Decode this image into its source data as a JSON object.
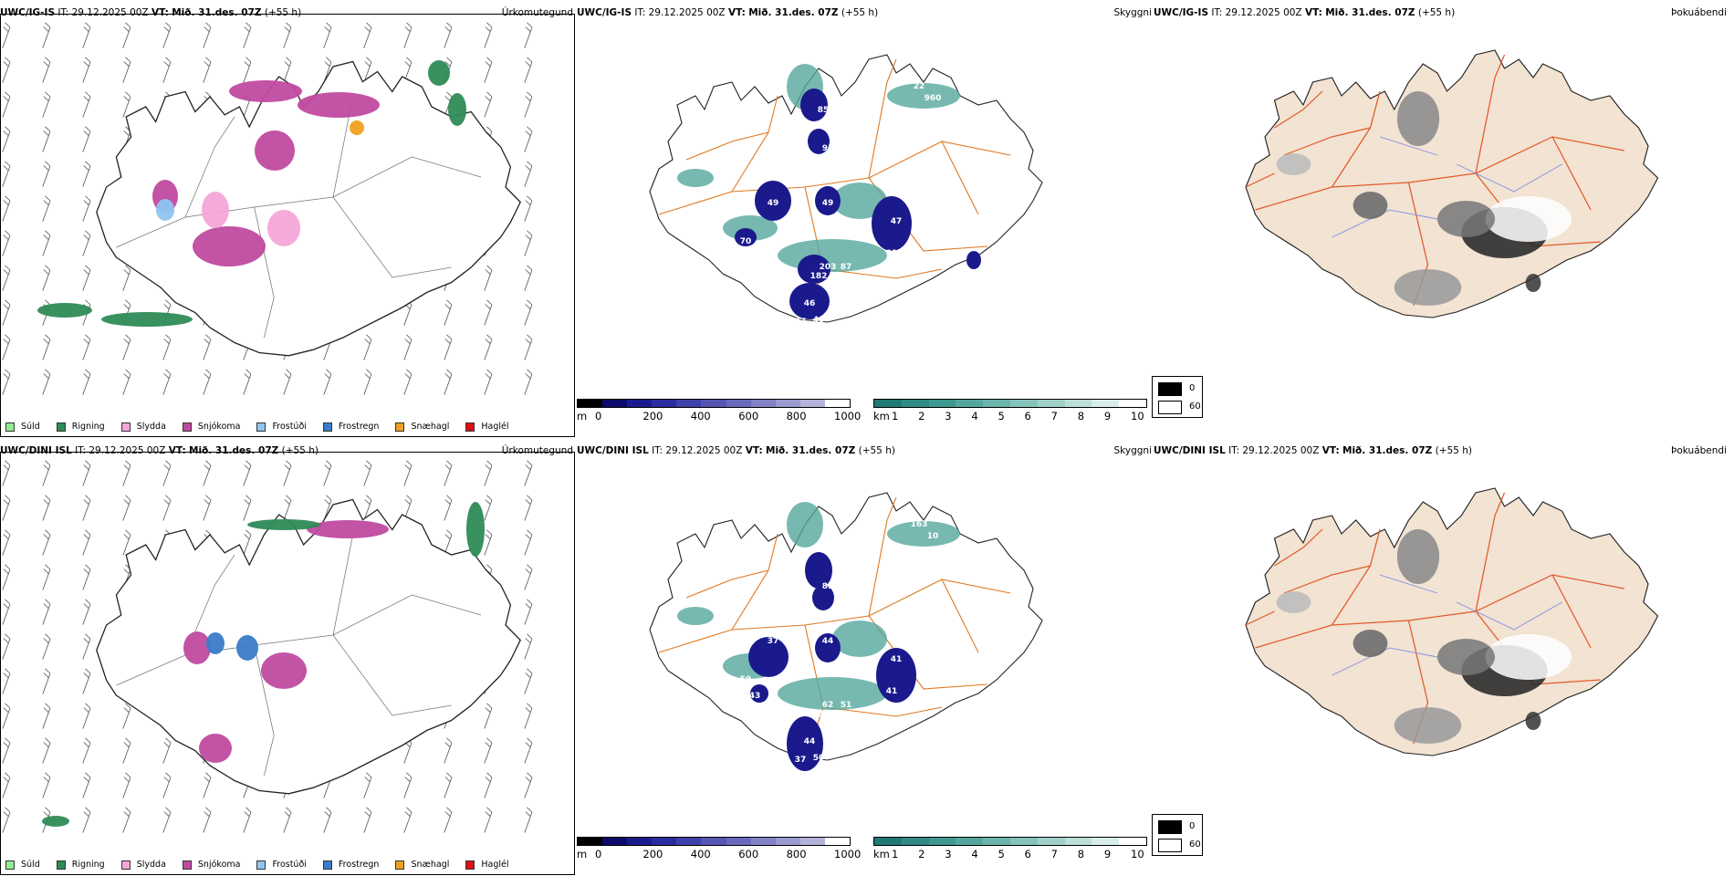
{
  "rows": [
    {
      "model": "UWC/IG-IS",
      "it_label": "IT:",
      "it": "29.12.2025 00Z",
      "vt_label": "VT:",
      "vt": "Mið. 31.des. 07Z",
      "lead": "(+55 h)",
      "vis_labels": [
        "49",
        "49",
        "70",
        "57",
        "47",
        "82",
        "182",
        "203",
        "87",
        "46",
        "37",
        "40",
        "85",
        "95",
        "41",
        "960",
        "22",
        "37"
      ]
    },
    {
      "model": "UWC/DINI ISL",
      "it_label": "IT:",
      "it": "29.12.2025 00Z",
      "vt_label": "VT:",
      "vt": "Mið. 31.des. 07Z",
      "lead": "(+55 h)",
      "vis_labels": [
        "37",
        "44",
        "59",
        "43",
        "41",
        "41",
        "51",
        "62",
        "51",
        "44",
        "37",
        "50",
        "91",
        "85",
        "81",
        "10",
        "163",
        "12"
      ]
    }
  ],
  "panel_titles": {
    "precip": "Úrkomutegund",
    "visibility": "Skyggni",
    "fog": "Þokuábendi"
  },
  "precip_legend": [
    {
      "label": "Súld",
      "color": "#90ee90"
    },
    {
      "label": "Rigning",
      "color": "#2e8b57"
    },
    {
      "label": "Slydda",
      "color": "#f4a6d7"
    },
    {
      "label": "Snjókoma",
      "color": "#c04aa0"
    },
    {
      "label": "Frostúði",
      "color": "#8ec5f0"
    },
    {
      "label": "Frostregn",
      "color": "#3a7cc8"
    },
    {
      "label": "Snæhagl",
      "color": "#f0a020"
    },
    {
      "label": "Haglél",
      "color": "#e01010"
    }
  ],
  "ceiling_scale": {
    "unit": "m",
    "ticks": [
      "0",
      "200",
      "400",
      "600",
      "800",
      "1000"
    ],
    "colors": [
      "#000000",
      "#0a0a6a",
      "#1a1a8c",
      "#2b2ba0",
      "#4040aa",
      "#5555b4",
      "#6b6bbd",
      "#8282c6",
      "#9a9acf",
      "#b4b4da",
      "#ceceе6"
    ]
  },
  "vis_scale": {
    "unit": "km",
    "ticks": [
      "1",
      "2",
      "3",
      "4",
      "5",
      "6",
      "7",
      "8",
      "9",
      "10"
    ],
    "colors": [
      "#1f7a74",
      "#2e8a83",
      "#3e9990",
      "#55a79e",
      "#6db5ac",
      "#86c3ba",
      "#a0d1c9",
      "#bcdfd8",
      "#d8ede9",
      "#ffffff"
    ]
  },
  "fog_legend": [
    {
      "value": "0",
      "color": "#000000"
    },
    {
      "value": "60",
      "color": "#ffffff"
    }
  ]
}
